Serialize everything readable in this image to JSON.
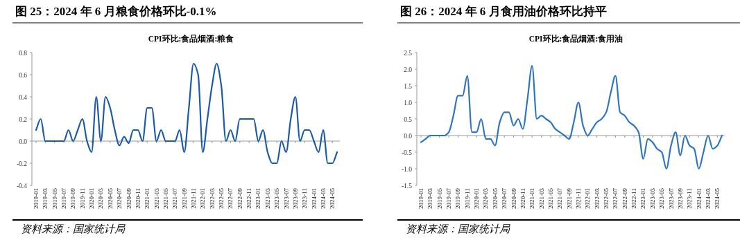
{
  "chart_data": [
    {
      "type": "line",
      "title": "图 25：2024 年 6 月粮食价格环比-0.1%",
      "subtitle": "CPI环比:食品烟酒:粮食",
      "annotations": [
        "资料来源：国家统计局"
      ],
      "categories": [
        "2019-01",
        null,
        "2019-03",
        null,
        "2019-05",
        null,
        "2019-07",
        null,
        "2019-09",
        null,
        "2019-11",
        null,
        "2020-01",
        null,
        "2020-03",
        null,
        "2020-05",
        null,
        "2020-07",
        null,
        "2020-09",
        null,
        "2020-11",
        null,
        "2021-01",
        null,
        "2021-03",
        null,
        "2021-05",
        null,
        "2021-07",
        null,
        "2021-09",
        null,
        "2021-11",
        null,
        "2022-01",
        null,
        "2022-03",
        null,
        "2022-05",
        null,
        "2022-07",
        null,
        "2022-09",
        null,
        "2022-11",
        null,
        "2023-01",
        null,
        "2023-03",
        null,
        "2023-05",
        null,
        "2023-07",
        null,
        "2023-09",
        null,
        "2023-11",
        null,
        "2024-01",
        null,
        "2024-03",
        null,
        "2024-05",
        null
      ],
      "series": [
        {
          "color": "#1a5aab",
          "values": [
            0.1,
            0.2,
            0.0,
            0.0,
            0.0,
            0.0,
            0.0,
            0.1,
            0.0,
            0.1,
            0.2,
            0.0,
            -0.1,
            0.4,
            0.0,
            0.4,
            0.3,
            0.1,
            -0.04,
            0.04,
            -0.02,
            0.1,
            0.1,
            0.0,
            0.3,
            0.3,
            0.0,
            0.1,
            0.0,
            0.0,
            0.0,
            0.1,
            -0.1,
            0.3,
            0.7,
            0.6,
            -0.1,
            0.2,
            0.5,
            0.7,
            0.5,
            0.0,
            0.1,
            0.0,
            0.2,
            0.2,
            0.2,
            0.2,
            0.0,
            0.1,
            -0.1,
            -0.2,
            -0.2,
            0.0,
            -0.1,
            0.2,
            0.4,
            0.0,
            0.1,
            0.1,
            0.0,
            -0.1,
            0.1,
            -0.2,
            -0.2,
            -0.1
          ]
        }
      ],
      "ylim": [
        -0.4,
        0.8
      ],
      "yticks": [
        {
          "value": -0.4,
          "label": "-0.4"
        },
        {
          "value": -0.2,
          "label": "-0.2"
        },
        {
          "value": 0,
          "label": "0.0"
        },
        {
          "value": 0.2,
          "label": "0.2"
        },
        {
          "value": 0.4,
          "label": "0.4"
        },
        {
          "value": 0.6,
          "label": "0.6"
        },
        {
          "value": 0.8,
          "label": "0.8"
        }
      ]
    },
    {
      "type": "line",
      "title": "图 26：2024 年 6 月食用油价格环比持平",
      "subtitle": "CPI环比:食品烟酒:食用油",
      "annotations": [
        "资料来源：国家统计局"
      ],
      "categories": [
        "2019-01",
        null,
        "2019-03",
        null,
        "2019-05",
        null,
        "2019-07",
        null,
        "2019-09",
        null,
        "2019-11",
        null,
        "2020-01",
        null,
        "2020-03",
        null,
        "2020-05",
        null,
        "2020-07",
        null,
        "2020-09",
        null,
        "2020-11",
        null,
        "2021-01",
        null,
        "2021-03",
        null,
        "2021-05",
        null,
        "2021-07",
        null,
        "2021-09",
        null,
        "2021-11",
        null,
        "2022-01",
        null,
        "2022-03",
        null,
        "2022-05",
        null,
        "2022-07",
        null,
        "2022-09",
        null,
        "2022-11",
        null,
        "2023-01",
        null,
        "2023-03",
        null,
        "2023-05",
        null,
        "2023-07",
        null,
        "2023-09",
        null,
        "2023-11",
        null,
        "2024-01",
        null,
        "2024-03",
        null,
        "2024-05",
        null
      ],
      "series": [
        {
          "color": "#2e75c0",
          "values": [
            -0.2,
            -0.1,
            0.0,
            0.0,
            0.0,
            0.0,
            0.1,
            0.6,
            1.2,
            1.2,
            1.8,
            0.1,
            0.1,
            0.5,
            -0.1,
            -0.1,
            -0.3,
            0.4,
            0.7,
            0.7,
            0.3,
            0.5,
            0.2,
            1.1,
            2.1,
            0.5,
            0.6,
            0.5,
            0.4,
            0.2,
            0.1,
            0.0,
            -0.1,
            0.4,
            1.0,
            0.3,
            0.0,
            0.2,
            0.4,
            0.5,
            0.7,
            1.3,
            1.8,
            0.7,
            0.6,
            0.4,
            0.3,
            0.1,
            -0.7,
            -0.1,
            -0.2,
            -0.4,
            -0.5,
            -1.0,
            -0.3,
            0.1,
            -0.6,
            0.0,
            -0.3,
            -0.4,
            -1.0,
            -0.5,
            0.0,
            -0.4,
            -0.3,
            0.0
          ]
        }
      ],
      "ylim": [
        -1.5,
        2.5
      ],
      "yticks": [
        {
          "value": -1.5,
          "label": "-1.5"
        },
        {
          "value": -1,
          "label": "-1.0"
        },
        {
          "value": -0.5,
          "label": "-0.5"
        },
        {
          "value": 0,
          "label": "0.0"
        },
        {
          "value": 0.5,
          "label": "0.5"
        },
        {
          "value": 1,
          "label": "1.0"
        },
        {
          "value": 1.5,
          "label": "1.5"
        },
        {
          "value": 2,
          "label": "2.0"
        },
        {
          "value": 2.5,
          "label": "2.5"
        }
      ]
    }
  ]
}
